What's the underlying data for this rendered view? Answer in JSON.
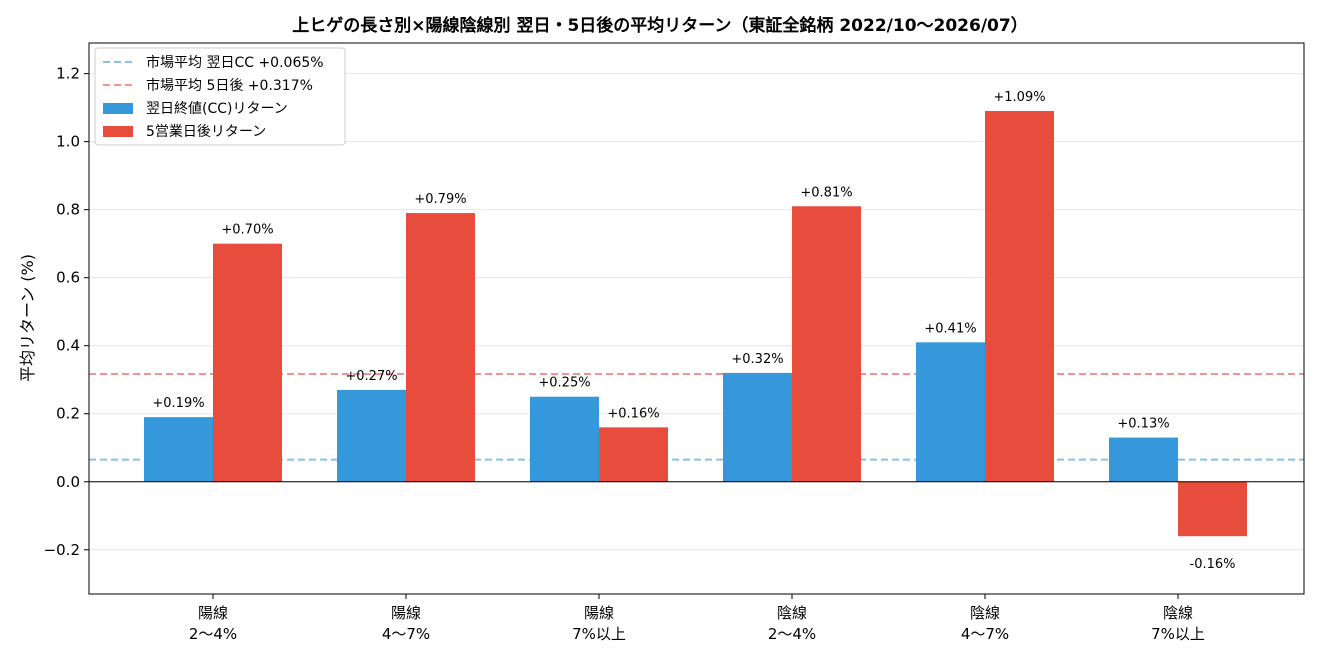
{
  "chart_data": {
    "type": "bar",
    "title": "上ヒゲの長さ別×陽線陰線別 翌日・5日後の平均リターン（東証全銘柄 2022/10〜2026/07）",
    "xlabel": "",
    "ylabel": "平均リターン (%)",
    "ylim": [
      -0.33,
      1.29
    ],
    "yticks": [
      -0.2,
      0.0,
      0.2,
      0.4,
      0.6,
      0.8,
      1.0,
      1.2
    ],
    "ytick_labels": [
      "−0.2",
      "0.0",
      "0.2",
      "0.4",
      "0.6",
      "0.8",
      "1.0",
      "1.2"
    ],
    "grid": true,
    "legend_position": "top-left",
    "categories": [
      [
        "陽線",
        "2〜4%"
      ],
      [
        "陽線",
        "4〜7%"
      ],
      [
        "陽線",
        "7%以上"
      ],
      [
        "陰線",
        "2〜4%"
      ],
      [
        "陰線",
        "4〜7%"
      ],
      [
        "陰線",
        "7%以上"
      ]
    ],
    "series": [
      {
        "name": "翌日終値(CC)リターン",
        "color": "#3498db",
        "values": [
          0.19,
          0.27,
          0.25,
          0.32,
          0.41,
          0.13
        ],
        "labels": [
          "+0.19%",
          "+0.27%",
          "+0.25%",
          "+0.32%",
          "+0.41%",
          "+0.13%"
        ]
      },
      {
        "name": "5営業日後リターン",
        "color": "#e74c3c",
        "values": [
          0.7,
          0.79,
          0.16,
          0.81,
          1.09,
          -0.16
        ],
        "labels": [
          "+0.70%",
          "+0.79%",
          "+0.16%",
          "+0.81%",
          "+1.09%",
          "-0.16%"
        ]
      }
    ],
    "reference_lines": [
      {
        "name": "市場平均 翌日CC +0.065%",
        "value": 0.065,
        "color": "#85c1e9"
      },
      {
        "name": "市場平均 5日後 +0.317%",
        "value": 0.317,
        "color": "#f1948a"
      }
    ]
  }
}
